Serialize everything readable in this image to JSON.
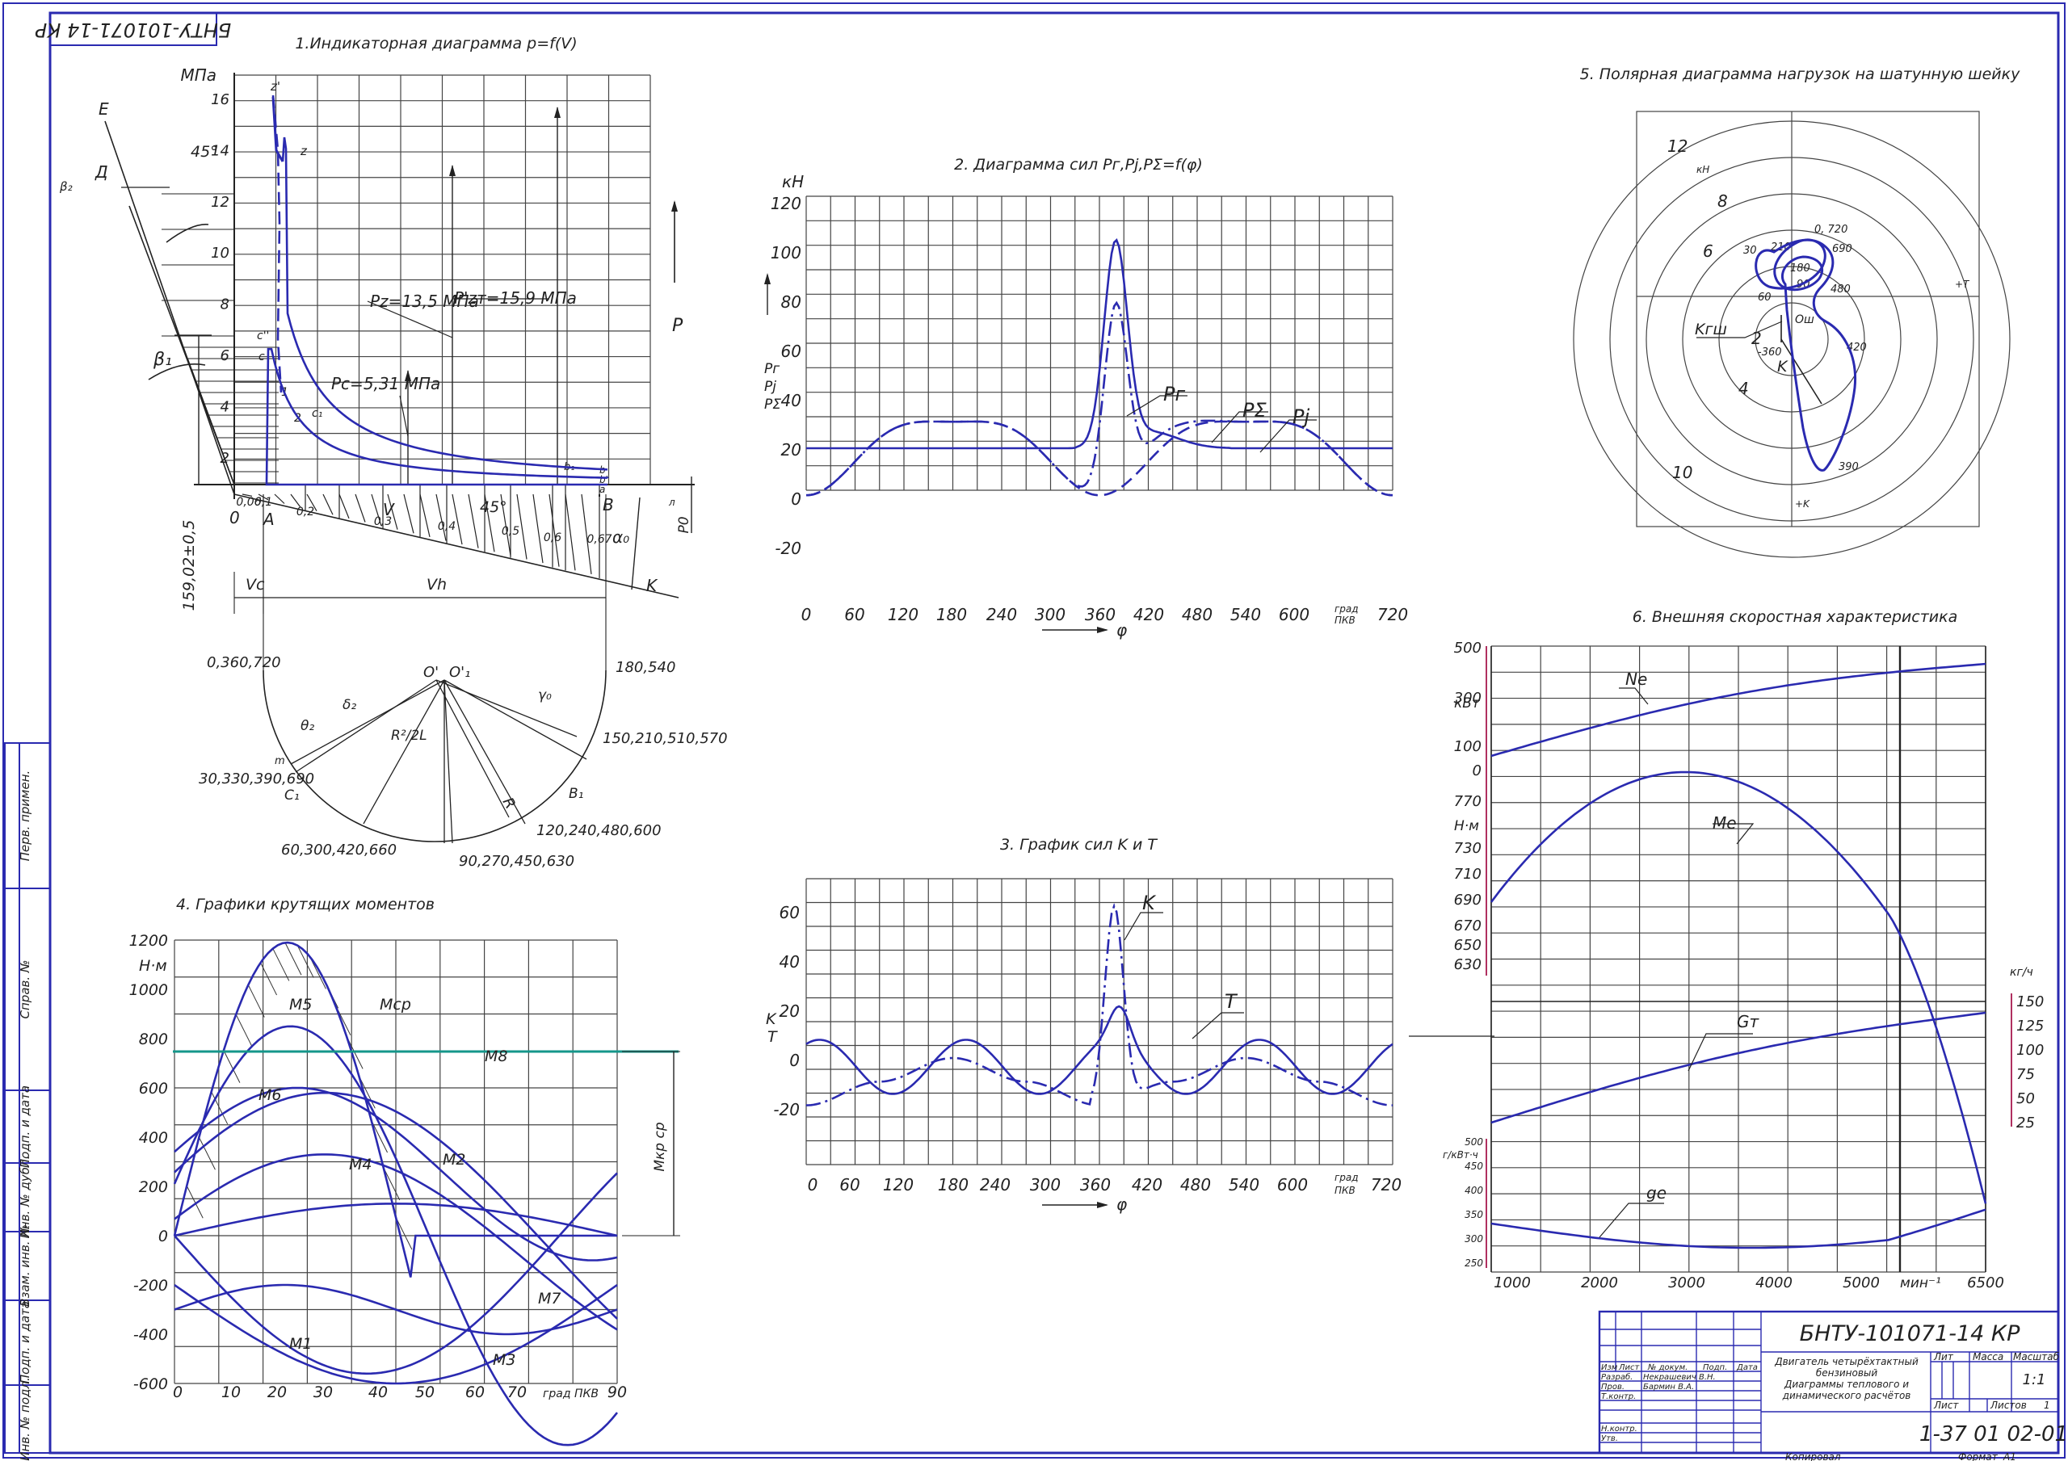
{
  "stamp": {
    "code": "БНТУ-101071-14 КР",
    "code_rot": "БНТУ-101071-14 КР",
    "desc1": "Двигатель четырёхтактный",
    "desc2": "бензиновый",
    "desc3": "Диаграммы теплового и",
    "desc4": "динамического расчётов",
    "sheet_no": "1-37 01 02-01",
    "lit": "Лит",
    "mass": "Масса",
    "scale": "Масштаб",
    "scale_val": "1:1",
    "sheet": "Лист",
    "sheets": "Листов",
    "sheets_val": "1",
    "rows": [
      "Изм",
      "Лист",
      "№ докум.",
      "Подп.",
      "Дата"
    ],
    "razrab": "Разраб.",
    "razrab_name": "Некрашевич В.Н.",
    "prov": "Пров.",
    "prov_name": "Бармин В.А.",
    "tkontr": "Т.контр.",
    "nkontr": "Н.контр.",
    "utv": "Утв.",
    "copied": "Копировал",
    "format": "Формат",
    "format_val": "А1"
  },
  "side": [
    "Перв. примен.",
    "Справ. №",
    "Подп. и дата",
    "Инв. № дубл.",
    "Взам. инв. №",
    "Подп. и дата",
    "Инв. № подл."
  ],
  "d1": {
    "title": "1.Индикаторная диаграмма p=f(V)",
    "unit": "МПа",
    "y_ticks": [
      "16",
      "14",
      "12",
      "10",
      "8",
      "6",
      "4",
      "2"
    ],
    "pz": "Pz=13,5 МПа",
    "pzt": "P'zт=15,9 МПа",
    "pc": "Pc=5,31 МПа",
    "P": "P",
    "E": "E",
    "D": "Д",
    "b2": "β₂",
    "b1": "β₁",
    "deg45a": "45°",
    "deg45b": "45°",
    "z1": "z'",
    "z": "z",
    "c2": "c''",
    "c": "c",
    "c1": "c₁",
    "one": "1",
    "two": "2",
    "b1p": "b₁",
    "bb": "b",
    "bp": "b'",
    "aa": "a",
    "zero": "0",
    "A": "A",
    "B": "B",
    "V": "V",
    "K": "K",
    "a0": "α₀",
    "dim": "159,02±0,5",
    "P0": "P0",
    "l": "л",
    "vx": [
      "0,06",
      "0,1",
      "0,2",
      "0,3",
      "0,4",
      "0,5",
      "0,6",
      "0,67"
    ],
    "Vc": "Vc",
    "Vh": "Vh",
    "O": "O'",
    "O1": "O'₁",
    "left": "0,360,720",
    "right": "180,540",
    "theta": "θ₂",
    "delta": "δ₂",
    "gamma": "γ₀",
    "R": "R",
    "R2L": "R²/2L",
    "a30": "30,330,390,690",
    "a150": "150,210,510,570",
    "a60": "60,300,420,660",
    "a90": "90,270,450,630",
    "a120": "120,240,480,600",
    "C1": "C₁",
    "B1": "B₁",
    "m": "m"
  },
  "d2": {
    "title": "2. Диаграмма сил Pг,Pj,PΣ=f(φ)",
    "unit": "кН",
    "y_ticks": [
      "120",
      "100",
      "80",
      "60",
      "40",
      "20",
      "0",
      "-20"
    ],
    "x_ticks": [
      "0",
      "60",
      "120",
      "180",
      "240",
      "300",
      "360",
      "420",
      "480",
      "600",
      "720"
    ],
    "x540": "540",
    "ylab1": "Pг",
    "ylab2": "Pj",
    "ylab3": "PΣ",
    "phi": "φ",
    "unit_x1": "град",
    "unit_x2": "ПКВ",
    "Pg": "Pг",
    "Ps": "PΣ",
    "Pj": "Pj"
  },
  "d3": {
    "title": "3. График сил K и T",
    "y_ticks": [
      "60",
      "40",
      "20",
      "0",
      "-20"
    ],
    "x_ticks": [
      "0",
      "60",
      "120",
      "180",
      "240",
      "300",
      "360",
      "420",
      "480",
      "540",
      "600",
      "720"
    ],
    "ylab1": "K",
    "ylab2": "T",
    "phi": "φ",
    "unit_x1": "град",
    "unit_x2": "ПКВ",
    "K": "K",
    "T": "T"
  },
  "d4": {
    "title": "4. Графики крутящих моментов",
    "unit": "Н·м",
    "y_ticks": [
      "1200",
      "1000",
      "800",
      "600",
      "400",
      "200",
      "0",
      "-200",
      "-400",
      "-600"
    ],
    "x_ticks": [
      "0",
      "10",
      "20",
      "30",
      "40",
      "50",
      "60",
      "70",
      "90"
    ],
    "unit_x": "град ПКВ",
    "labels": {
      "M1": "M1",
      "M2": "M2",
      "M3": "M3",
      "M4": "M4",
      "M5": "M5",
      "M6": "M6",
      "M7": "M7",
      "M8": "M8",
      "Mcp": "Mcp"
    },
    "mcp_dim": "Mкр ср"
  },
  "d5": {
    "title": "5. Полярная диаграмма нагрузок на шатунную шейку",
    "rings": [
      "12",
      "8",
      "6",
      "2",
      "4",
      "10"
    ],
    "kn": "кН",
    "a720": "0, 720",
    "a30": "30",
    "a210": "210",
    "a690": "690",
    "a180": "180",
    "a90": "90",
    "a480": "480",
    "a60": "60",
    "a360": "-360",
    "a420": "420",
    "a390": "390",
    "plusT": "+T",
    "plusK": "+K",
    "Ksh": "Kгш",
    "K": "K",
    "O": "Oш"
  },
  "d6": {
    "title": "6. Внешняя скоростная характеристика",
    "ne_unit": "кВт",
    "ne_ticks": [
      "500",
      "300",
      "100",
      "0"
    ],
    "me_unit": "Н·м",
    "me_ticks": [
      "770",
      "730",
      "710",
      "690",
      "670",
      "650",
      "630"
    ],
    "gt_unit": "кг/ч",
    "gt_ticks": [
      "150",
      "125",
      "100",
      "75",
      "50",
      "25"
    ],
    "ge_unit": "г/кВт·ч",
    "ge_ticks": [
      "500",
      "450",
      "400",
      "350",
      "300",
      "250"
    ],
    "x_ticks": [
      "1000",
      "2000",
      "3000",
      "4000",
      "5000",
      "6500"
    ],
    "x_unit": "мин⁻¹",
    "Ne": "Ne",
    "Me": "Me",
    "Gt": "Gт",
    "ge": "ge"
  }
}
